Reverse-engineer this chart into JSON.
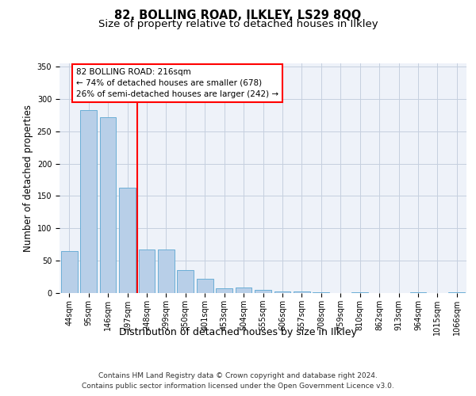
{
  "title1": "82, BOLLING ROAD, ILKLEY, LS29 8QQ",
  "title2": "Size of property relative to detached houses in Ilkley",
  "xlabel": "Distribution of detached houses by size in Ilkley",
  "ylabel": "Number of detached properties",
  "categories": [
    "44sqm",
    "95sqm",
    "146sqm",
    "197sqm",
    "248sqm",
    "299sqm",
    "350sqm",
    "401sqm",
    "453sqm",
    "504sqm",
    "555sqm",
    "606sqm",
    "657sqm",
    "708sqm",
    "759sqm",
    "810sqm",
    "862sqm",
    "913sqm",
    "964sqm",
    "1015sqm",
    "1066sqm"
  ],
  "values": [
    65,
    283,
    272,
    163,
    67,
    67,
    36,
    22,
    7,
    9,
    5,
    3,
    3,
    1,
    0,
    1,
    0,
    0,
    1,
    0,
    1
  ],
  "bar_color": "#b8cfe8",
  "bar_edge_color": "#6baed6",
  "vline_x": 3.5,
  "vline_color": "red",
  "annotation_line1": "82 BOLLING ROAD: 216sqm",
  "annotation_line2": "← 74% of detached houses are smaller (678)",
  "annotation_line3": "26% of semi-detached houses are larger (242) →",
  "ylim": [
    0,
    355
  ],
  "yticks": [
    0,
    50,
    100,
    150,
    200,
    250,
    300,
    350
  ],
  "footer1": "Contains HM Land Registry data © Crown copyright and database right 2024.",
  "footer2": "Contains public sector information licensed under the Open Government Licence v3.0.",
  "bg_color": "#eef2f9",
  "grid_color": "#c5cfdf",
  "title1_fontsize": 10.5,
  "title2_fontsize": 9.5,
  "xlabel_fontsize": 9,
  "ylabel_fontsize": 8.5,
  "tick_fontsize": 7,
  "ann_fontsize": 7.5,
  "footer_fontsize": 6.5
}
